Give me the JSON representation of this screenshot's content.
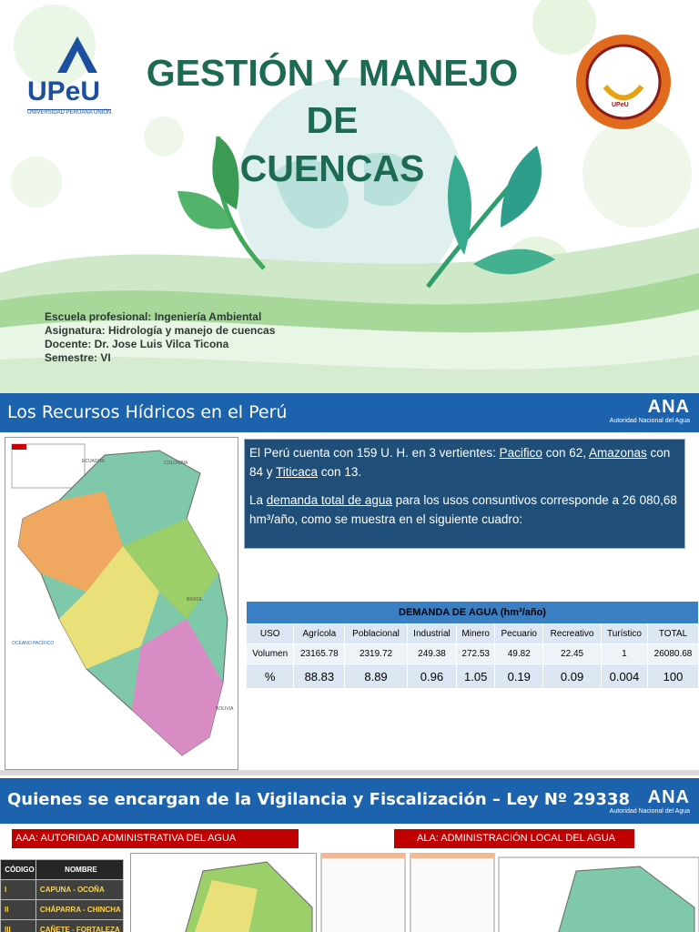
{
  "slide1": {
    "logo_left": {
      "name": "UPeU",
      "subtitle": "UNIVERSIDAD PERUANA UNIÓN"
    },
    "logo_right": {
      "text": "UPeU"
    },
    "title": [
      "GESTIÓN Y MANEJO",
      "DE",
      "CUENCAS"
    ],
    "info": [
      "Escuela profesional: Ingeniería Ambiental",
      "Asignatura: Hidrología y manejo de cuencas",
      "Docente: Dr. Jose Luis Vilca Ticona",
      "Semestre: VI"
    ]
  },
  "slide2": {
    "title": "Los Recursos Hídricos en el Perú",
    "logo": {
      "name": "ANA",
      "subtitle": "Autoridad Nacional del Agua"
    },
    "map_labels": [
      "ECUADOR",
      "COLOMBIA",
      "BRASIL",
      "OCÉANO PACÍFICO",
      "BOLIVIA"
    ],
    "paragraphs": [
      [
        {
          "text": "El Perú cuenta con 159 U. H. en 3 vertientes: "
        },
        {
          "text": "Pacifico",
          "underline": true
        },
        {
          "text": " con 62, "
        },
        {
          "text": "Amazonas",
          "underline": true
        },
        {
          "text": " con 84 y "
        },
        {
          "text": "Titicaca",
          "underline": true
        },
        {
          "text": " con 13."
        }
      ],
      [
        {
          "text": "La "
        },
        {
          "text": "demanda total de agua",
          "underline": true
        },
        {
          "text": " para los usos consuntivos corresponde a 26 080,68 hm³/año, como se muestra en el siguiente cuadro:"
        }
      ]
    ],
    "table": {
      "title": "DEMANDA DE AGUA (hm³/año)",
      "rows": [
        [
          "USO",
          "Agrícola",
          "Poblacional",
          "Industrial",
          "Minero",
          "Pecuario",
          "Recreativo",
          "Turístico",
          "TOTAL"
        ],
        [
          "Volumen",
          23165.78,
          2319.72,
          249.38,
          272.53,
          49.82,
          22.45,
          1,
          26080.68
        ],
        [
          "%",
          88.83,
          8.89,
          0.96,
          1.05,
          0.19,
          0.09,
          0.004,
          100
        ]
      ]
    }
  },
  "slide3": {
    "title": "Quienes se encargan de la Vigilancia y Fiscalización – Ley Nº 29338",
    "logo": {
      "name": "ANA",
      "subtitle": "Autoridad Nacional del Agua"
    },
    "aaa": "AAA: AUTORIDAD ADMINISTRATIVA DEL AGUA",
    "ala": "ALA: ADMINISTRACIÓN LOCAL DEL AGUA",
    "table": {
      "rows": [
        [
          "CÓDIGO",
          "NOMBRE"
        ],
        [
          "I",
          "CAPUNA - OCOÑA"
        ],
        [
          "II",
          "CHÁPARRA - CHINCHA"
        ],
        [
          "III",
          "CAÑETE - FORTALEZA"
        ]
      ]
    }
  }
}
